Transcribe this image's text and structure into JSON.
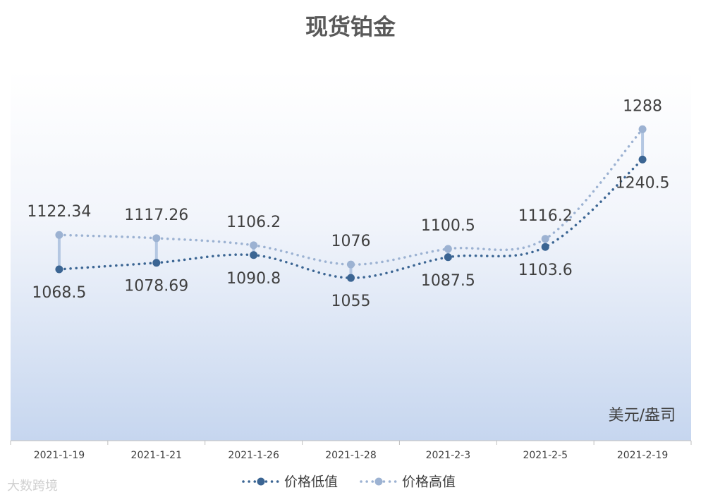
{
  "chart_data": {
    "type": "line",
    "title": "现货铂金",
    "categories": [
      "2021-1-19",
      "2021-1-21",
      "2021-1-26",
      "2021-1-28",
      "2021-2-3",
      "2021-2-5",
      "2021-2-19"
    ],
    "series": [
      {
        "name": "价格低值",
        "color": "#3b6593",
        "values": [
          1068.5,
          1078.69,
          1090.8,
          1055,
          1087.5,
          1103.6,
          1240.5
        ]
      },
      {
        "name": "价格高值",
        "color": "#9cb2d2",
        "values": [
          1122.34,
          1117.26,
          1106.2,
          1076,
          1100.5,
          1116.2,
          1288
        ]
      }
    ],
    "ylim": [
      800,
      1380
    ],
    "unit_label": "美元/盎司",
    "watermark": "大数跨境",
    "hi_lo_lines": true,
    "grid": false
  }
}
